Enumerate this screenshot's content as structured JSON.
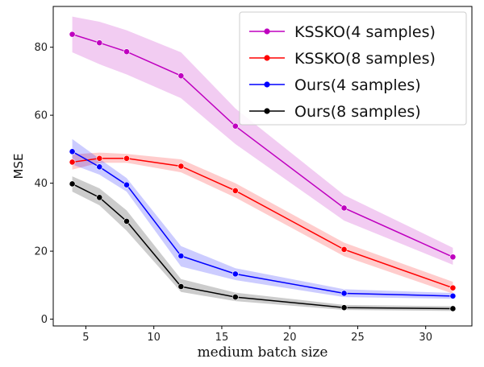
{
  "chart_data": {
    "type": "line",
    "xlabel": "medium batch size",
    "ylabel": "MSE",
    "xlim": [
      2.6,
      33.4
    ],
    "ylim": [
      -2,
      92
    ],
    "xticks": [
      5,
      10,
      15,
      20,
      25,
      30
    ],
    "yticks": [
      0,
      20,
      40,
      60,
      80
    ],
    "grid": false,
    "legend_position": "top-right",
    "x": [
      4,
      6,
      8,
      12,
      16,
      24,
      32
    ],
    "series": [
      {
        "name": "KSSKO(4 samples)",
        "color": "#bf00bf",
        "values": [
          83.8,
          81.3,
          78.7,
          71.6,
          56.8,
          32.7,
          18.3
        ],
        "lower": [
          78.5,
          75.0,
          72.0,
          65.0,
          51.5,
          29.0,
          16.0
        ],
        "upper": [
          89.0,
          87.5,
          85.0,
          78.5,
          62.0,
          36.5,
          21.0
        ]
      },
      {
        "name": "KSSKO(8 samples)",
        "color": "#ff0000",
        "values": [
          46.2,
          47.3,
          47.3,
          45.0,
          37.8,
          20.5,
          9.2
        ],
        "lower": [
          44.0,
          46.0,
          46.0,
          43.2,
          35.8,
          18.5,
          7.5
        ],
        "upper": [
          48.5,
          49.0,
          48.6,
          47.0,
          40.0,
          22.5,
          11.0
        ]
      },
      {
        "name": "Ours(4 samples)",
        "color": "#0000ff",
        "values": [
          49.3,
          44.8,
          39.5,
          18.6,
          13.3,
          7.6,
          6.8
        ],
        "lower": [
          45.5,
          42.5,
          37.5,
          15.5,
          11.5,
          6.5,
          6.0
        ],
        "upper": [
          53.0,
          47.2,
          41.5,
          21.5,
          15.0,
          8.8,
          7.7
        ]
      },
      {
        "name": "Ours(8 samples)",
        "color": "#000000",
        "values": [
          39.8,
          35.8,
          28.8,
          9.6,
          6.5,
          3.4,
          3.1
        ],
        "lower": [
          37.5,
          33.5,
          26.0,
          8.0,
          5.3,
          2.7,
          2.4
        ],
        "upper": [
          42.0,
          38.5,
          32.0,
          11.8,
          7.8,
          4.2,
          3.8
        ]
      }
    ]
  }
}
